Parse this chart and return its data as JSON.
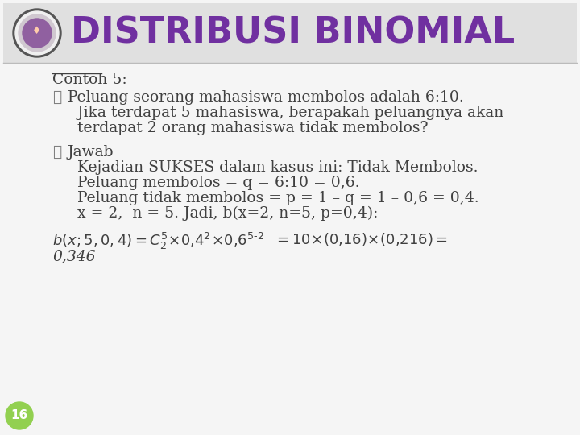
{
  "slide_bg": "#f2f2f2",
  "header_bg": "#e0e0e0",
  "title": "DISTRIBUSI BINOMIAL",
  "title_color": "#7030a0",
  "text_color": "#404040",
  "bullet_color": "#808080",
  "page_num": "16",
  "page_num_bg": "#92d050",
  "stripe_color": "#e8e8e8",
  "font_size_title": 32,
  "font_size_body": 13.5,
  "font_size_formula": 13,
  "contoh_label": "Contoh 5:",
  "bullet_char": "❧",
  "bullet1_text": "Peluang seorang mahasiswa membolos adalah 6:10.",
  "bullet1b": "  Jika terdapat 5 mahasiswa, berapakah peluangnya akan",
  "bullet1c": "  terdapat 2 orang mahasiswa tidak membolos?",
  "bullet2_text": "Jawab",
  "line1": "  Kejadian SUKSES dalam kasus ini: Tidak Membolos.",
  "line2": "  Peluang membolos = q = 6:10 = 0,6.",
  "line3": "  Peluang tidak membolos = p = 1 – q = 1 – 0,6 = 0,4.",
  "line4": "  x = 2,  n = 5. Jadi, b(x=2, n=5, p=0,4):",
  "formula_final": "0,346",
  "result_text": " = 10×(0,16)×(0,216) ="
}
